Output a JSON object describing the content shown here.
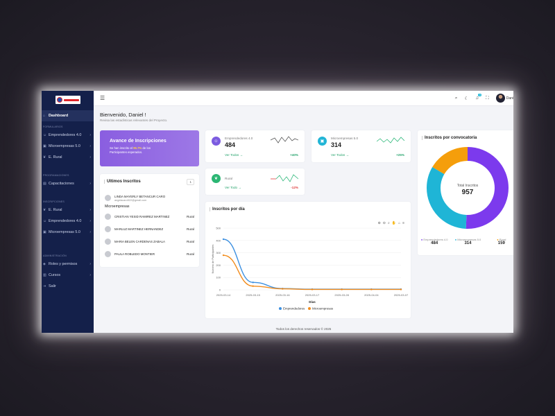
{
  "sidebar": {
    "logo_alt": "Emprendedores",
    "dashboard": "Dashboard",
    "section_formularios": "FORMULARIOS",
    "items_forms": [
      "Emprendedores 4.0",
      "Microempresas 5.0",
      "E. Rural"
    ],
    "section_programaciones": "PROGRAMACIONES",
    "capacitaciones": "Capacitaciones",
    "section_inscripciones": "INSCRIPCIONES",
    "items_insc": [
      "E. Rural",
      "Emprendedores 4.0",
      "Microempresas 5.0"
    ],
    "section_administracion": "ADMINISTRACIÓN",
    "roles": "Roles y permisos",
    "cursos": "Cursos",
    "salir": "Salir"
  },
  "topbar": {
    "menu_icon": "menu-icon",
    "notif_count": "3",
    "user_name": "Dani"
  },
  "welcome": {
    "title": "Bienvenido, Daniel !",
    "subtitle": "Revisa las estadísticas relevantes del Proyecto."
  },
  "avance": {
    "title": "Avance de Inscripciones",
    "text_pre": "Se han inscrito el ",
    "pct": "95.7%",
    "text_post": " de los Participantes esperados."
  },
  "stats": [
    {
      "name": "Emprendedores 4.0",
      "value": "484",
      "link": "Ver Todos",
      "pct": "+40%",
      "color": "#7c5ce0",
      "pct_color": "#24a36b",
      "spark_color": "#555"
    },
    {
      "name": "Microempresas 5.0",
      "value": "314",
      "link": "Ver Todos",
      "pct": "+25%",
      "color": "#22b5d6",
      "pct_color": "#24a36b",
      "spark_color": "#2eb87a"
    },
    {
      "name": "Rural",
      "value": "",
      "link": "Ver Todo",
      "pct": "-12%",
      "color": "#2bb673",
      "pct_color": "#e03a3a",
      "spark_color": "#2eb87a"
    }
  ],
  "ultimos": {
    "title": "Ultimos Inscritos",
    "badge": "1",
    "first_name": "LINDA MAYERLY BETANCUR CARO",
    "first_email": "angelacaro522@gmail.com",
    "first_type": "Microempresas",
    "rows": [
      {
        "name": "CRISTIAN YESID RAMIREZ MARTINEZ",
        "type": "Rural"
      },
      {
        "name": "MARLUZ MARTINEZ HERNANDEZ",
        "type": "Rural"
      },
      {
        "name": "MARIA BELEN CARDENAS ZABALA",
        "type": "Rural"
      },
      {
        "name": "PAULA ROBLEDO MONTIER",
        "type": "Rural"
      }
    ]
  },
  "convocatoria": {
    "title": "Inscritos por convocatoria",
    "center_label": "Total Inscritos",
    "center_value": "957",
    "legend": [
      {
        "name": "Emprendedores 4.0",
        "value": "484",
        "color": "#7c3aed"
      },
      {
        "name": "Microempresas 5.0",
        "value": "314",
        "color": "#1fb5d6"
      },
      {
        "name": "Rural",
        "value": "159",
        "color": "#f59e0b"
      }
    ]
  },
  "dia_title": "Inscritos por día",
  "chart_data": {
    "type": "line",
    "x": [
      "2025-03-14",
      "2025-03-15",
      "2025-03-16",
      "2025-03-17",
      "2025-03-28",
      "2025-04-04",
      "2025-03-07"
    ],
    "series": [
      {
        "name": "Emprendedores",
        "values": [
          410,
          60,
          10,
          5,
          5,
          5,
          5
        ],
        "color": "#3b8fe0"
      },
      {
        "name": "Microempresas",
        "values": [
          280,
          30,
          8,
          3,
          3,
          3,
          3
        ],
        "color": "#f28c1c"
      }
    ],
    "yticks": [
      "500",
      "400",
      "300",
      "200",
      "100",
      "0"
    ],
    "ylim": [
      0,
      500
    ],
    "xlabel": "Días",
    "ylabel": "Número de Participantes",
    "legend": "bottom"
  },
  "footer": "Todos los derechos reservados © 2025"
}
